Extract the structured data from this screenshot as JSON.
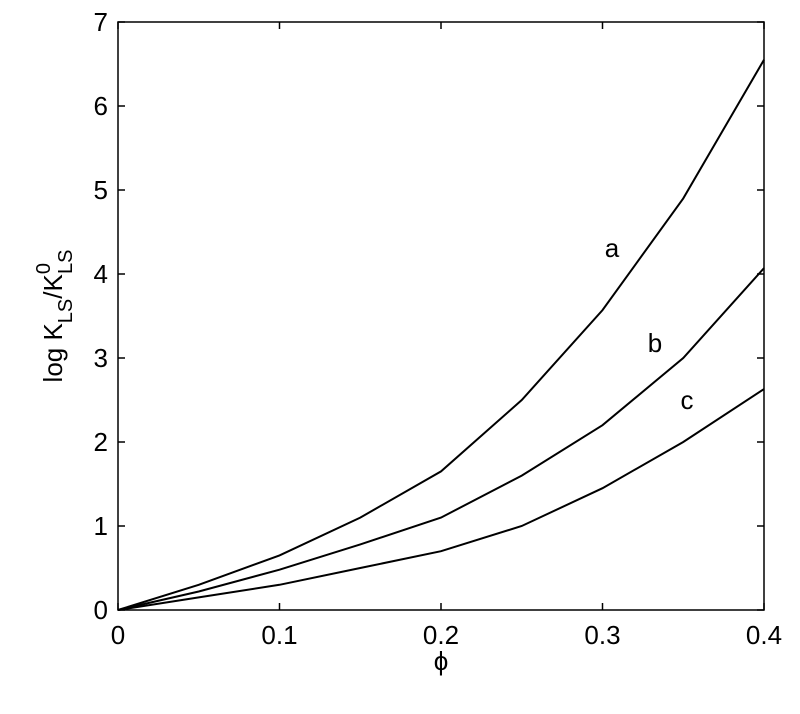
{
  "chart_data": {
    "type": "line",
    "x_label": "ϕ",
    "y_label": [
      "log K",
      "LS",
      "/K",
      "0",
      "LS"
    ],
    "x": [
      0,
      0.05,
      0.1,
      0.15,
      0.2,
      0.25,
      0.3,
      0.35,
      0.4
    ],
    "series": [
      {
        "name": "a",
        "color": "#000000",
        "values": [
          0,
          0.3,
          0.65,
          1.1,
          1.65,
          2.5,
          3.57,
          4.9,
          6.55
        ]
      },
      {
        "name": "b",
        "color": "#000000",
        "values": [
          0,
          0.22,
          0.48,
          0.78,
          1.1,
          1.6,
          2.2,
          3.0,
          4.07
        ]
      },
      {
        "name": "c",
        "color": "#000000",
        "values": [
          0,
          0.15,
          0.3,
          0.5,
          0.7,
          1.0,
          1.45,
          2.0,
          2.63
        ]
      }
    ],
    "xlim": [
      0,
      0.4
    ],
    "xticks": [
      0,
      0.1,
      0.2,
      0.3,
      0.4
    ],
    "ylim": [
      0,
      7
    ],
    "yticks": [
      0,
      1,
      2,
      3,
      4,
      5,
      6,
      7
    ],
    "grid": false
  }
}
